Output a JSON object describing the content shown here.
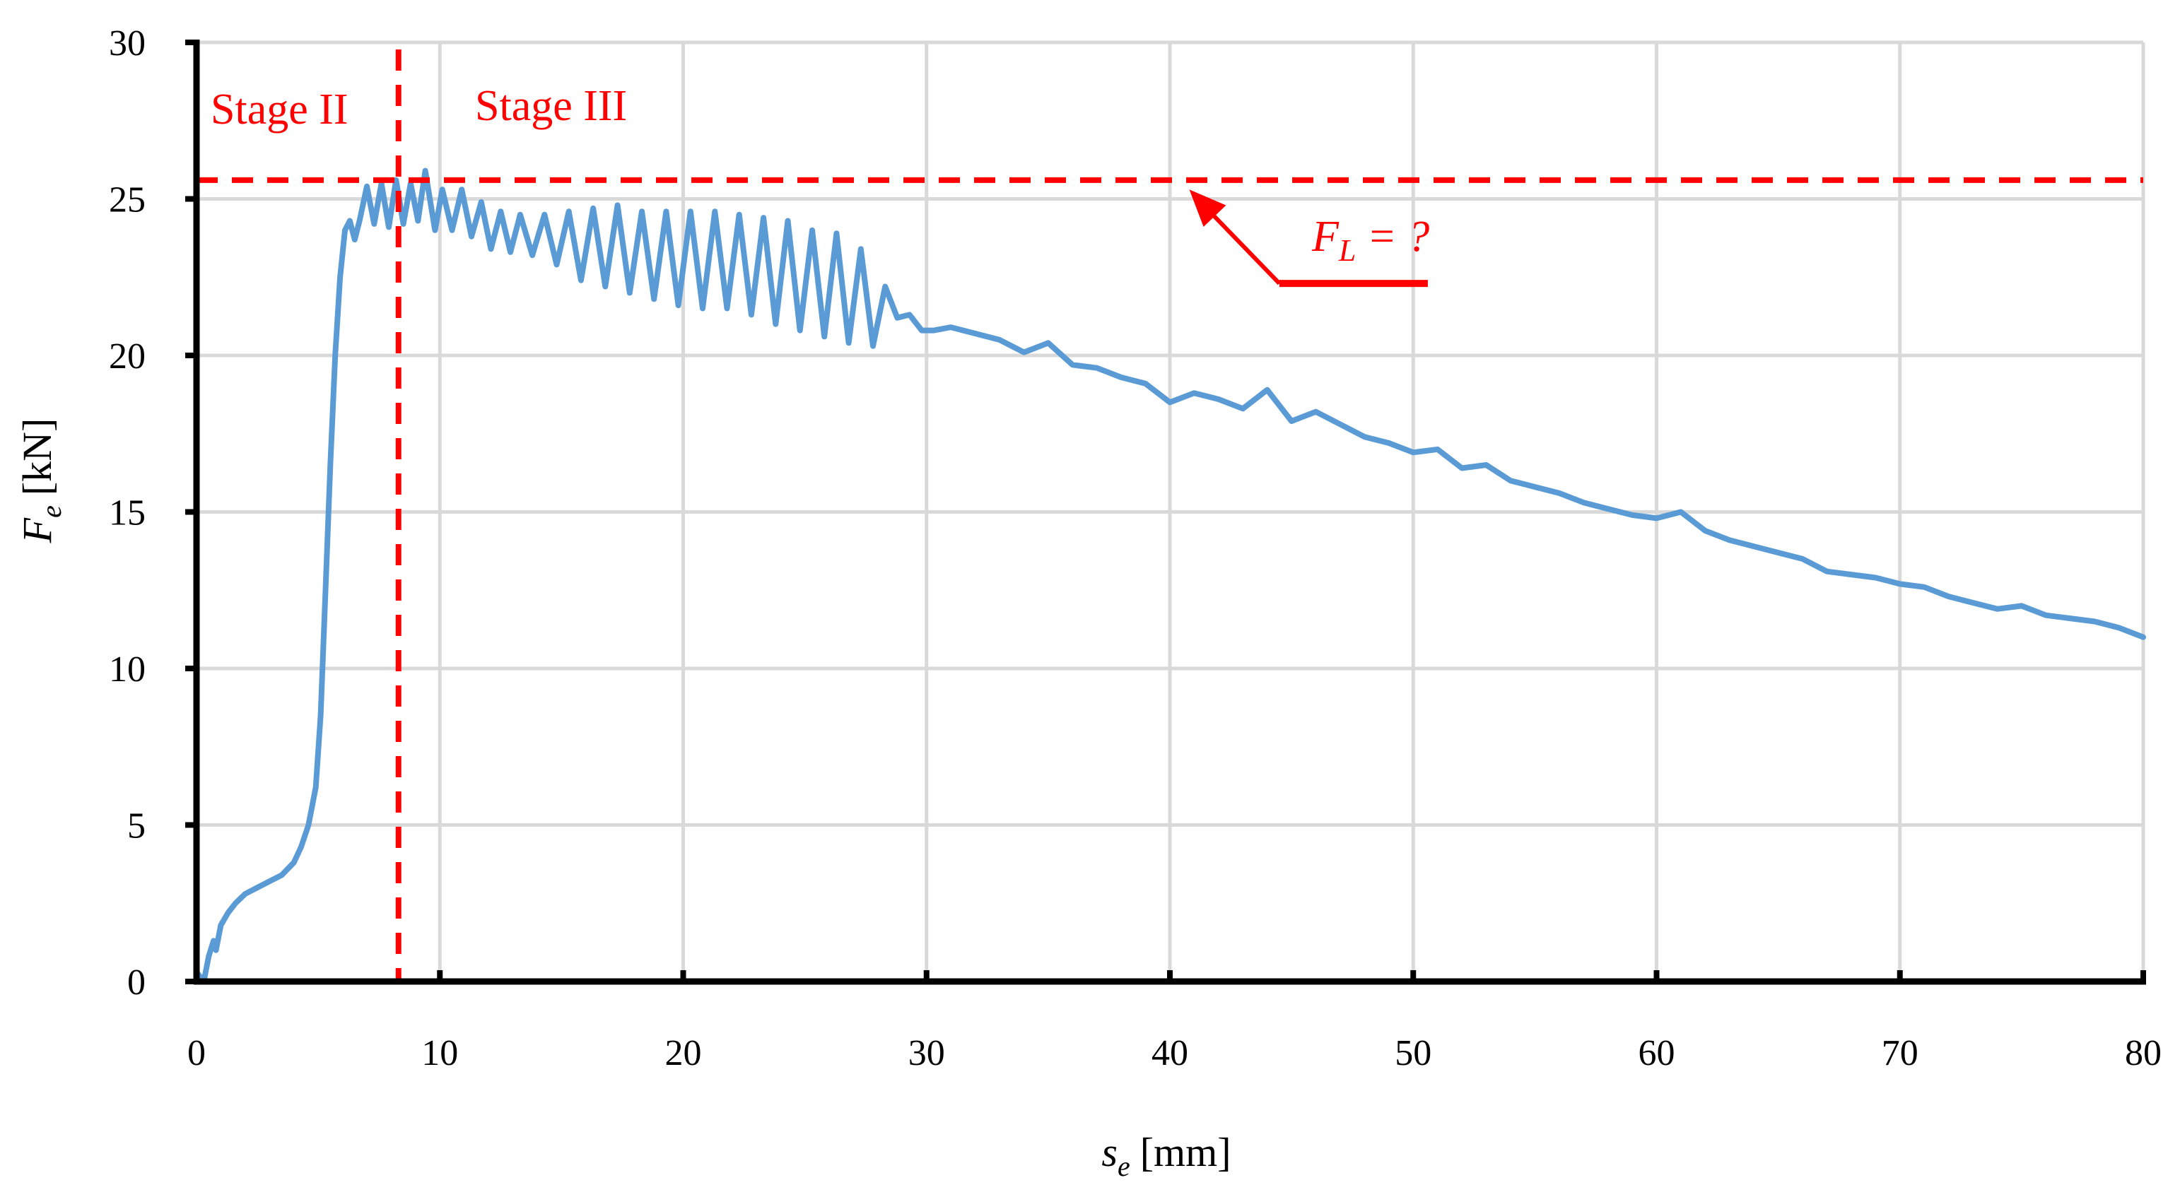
{
  "chart_data": {
    "type": "line",
    "title": "",
    "xlabel": {
      "symbol": "s",
      "subscript": "e",
      "unit": "[mm]"
    },
    "ylabel": {
      "symbol": "F",
      "subscript": "e",
      "unit": "[kN]"
    },
    "xlim": [
      0,
      80
    ],
    "ylim": [
      0,
      30
    ],
    "x_ticks": [
      "0",
      "10",
      "20",
      "30",
      "40",
      "50",
      "60",
      "70",
      "80"
    ],
    "y_ticks": [
      "0",
      "5",
      "10",
      "15",
      "20",
      "25",
      "30"
    ],
    "grid": true,
    "colors": {
      "series": "#5b9bd5",
      "annotation": "#ff0000",
      "grid": "#d9d9d9"
    },
    "series": [
      {
        "name": "Fe",
        "x": [
          0,
          0.3,
          0.5,
          0.7,
          0.8,
          1.0,
          1.3,
          1.6,
          2.0,
          2.5,
          3.0,
          3.5,
          4.0,
          4.3,
          4.6,
          4.9,
          5.1,
          5.3,
          5.5,
          5.7,
          5.9,
          6.1,
          6.3,
          6.5,
          6.7,
          7.0,
          7.3,
          7.6,
          7.9,
          8.2,
          8.5,
          8.8,
          9.1,
          9.4,
          9.8,
          10.1,
          10.5,
          10.9,
          11.3,
          11.7,
          12.1,
          12.5,
          12.9,
          13.3,
          13.8,
          14.3,
          14.8,
          15.3,
          15.8,
          16.3,
          16.8,
          17.3,
          17.8,
          18.3,
          18.8,
          19.3,
          19.8,
          20.3,
          20.8,
          21.3,
          21.8,
          22.3,
          22.8,
          23.3,
          23.8,
          24.3,
          24.8,
          25.3,
          25.8,
          26.3,
          26.8,
          27.3,
          27.8,
          28.3,
          28.8,
          29.3,
          29.8,
          30.3,
          31.0,
          32.0,
          33.0,
          34.0,
          35.0,
          36.0,
          37.0,
          38.0,
          39.0,
          40.0,
          41.0,
          42.0,
          43.0,
          44.0,
          45.0,
          46.0,
          47.0,
          48.0,
          49.0,
          50.0,
          51.0,
          52.0,
          53.0,
          54.0,
          55.0,
          56.0,
          57.0,
          58.0,
          59.0,
          60.0,
          61.0,
          62.0,
          63.0,
          64.0,
          65.0,
          66.0,
          67.0,
          68.0,
          69.0,
          70.0,
          71.0,
          72.0,
          73.0,
          74.0,
          75.0,
          76.0,
          77.0,
          78.0,
          79.0,
          80.0
        ],
        "y": [
          0.3,
          0.0,
          0.8,
          1.3,
          1.0,
          1.8,
          2.2,
          2.5,
          2.8,
          3.0,
          3.2,
          3.4,
          3.8,
          4.3,
          5.0,
          6.2,
          8.5,
          12.5,
          16.5,
          20.0,
          22.5,
          24.0,
          24.3,
          23.7,
          24.3,
          25.4,
          24.2,
          25.5,
          24.1,
          25.6,
          24.2,
          25.5,
          24.3,
          25.9,
          24.0,
          25.3,
          24.0,
          25.3,
          23.8,
          24.9,
          23.4,
          24.6,
          23.3,
          24.5,
          23.2,
          24.5,
          22.9,
          24.6,
          22.4,
          24.7,
          22.2,
          24.8,
          22.0,
          24.6,
          21.8,
          24.6,
          21.6,
          24.6,
          21.5,
          24.6,
          21.5,
          24.5,
          21.3,
          24.4,
          21.0,
          24.3,
          20.8,
          24.0,
          20.6,
          23.9,
          20.4,
          23.4,
          20.3,
          22.2,
          21.2,
          21.3,
          20.8,
          20.8,
          20.9,
          20.7,
          20.5,
          20.1,
          20.4,
          19.7,
          19.6,
          19.3,
          19.1,
          18.5,
          18.8,
          18.6,
          18.3,
          18.9,
          17.9,
          18.2,
          17.8,
          17.4,
          17.2,
          16.9,
          17.0,
          16.4,
          16.5,
          16.0,
          15.8,
          15.6,
          15.3,
          15.1,
          14.9,
          14.8,
          15.0,
          14.4,
          14.1,
          13.9,
          13.7,
          13.5,
          13.1,
          13.0,
          12.9,
          12.7,
          12.6,
          12.3,
          12.1,
          11.9,
          12.0,
          11.7,
          11.6,
          11.5,
          11.3,
          11.0
        ]
      }
    ],
    "annotations": {
      "stage_left": "Stage II",
      "stage_right": "Stage III",
      "stage_boundary_x": 8.3,
      "limit_line_y": 25.6,
      "limit_label_symbol": "F",
      "limit_label_subscript": "L",
      "limit_label_rest": " = ?",
      "arrow_tail": [
        44.5,
        22.3
      ],
      "arrow_head": [
        40.8,
        25.3
      ]
    }
  }
}
